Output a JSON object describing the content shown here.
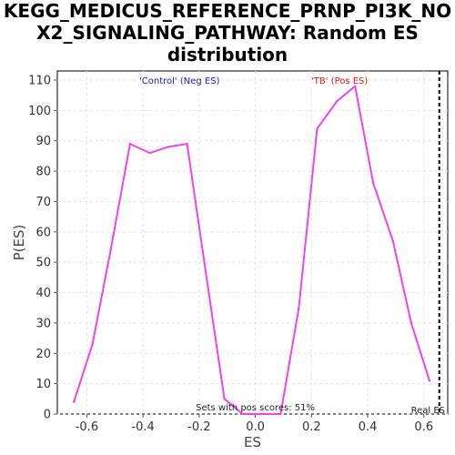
{
  "chart_data": {
    "type": "line",
    "title_lines": [
      "KEGG_MEDICUS_REFERENCE_PRNP_PI3K_NO",
      "X2_SIGNALING_PATHWAY: Random ES",
      "distribution"
    ],
    "xlabel": "ES",
    "ylabel": "P(ES)",
    "xlim": [
      -0.705,
      0.685
    ],
    "ylim": [
      0,
      113
    ],
    "x_ticks": [
      -0.6,
      -0.4,
      -0.2,
      0.0,
      0.2,
      0.4,
      0.6
    ],
    "x_tick_labels": [
      "-0.6",
      "-0.4",
      "-0.2",
      "0.0",
      "0.2",
      "0.4",
      "0.6"
    ],
    "y_ticks": [
      0,
      10,
      20,
      30,
      40,
      50,
      60,
      70,
      80,
      90,
      100,
      110
    ],
    "y_tick_labels": [
      "0",
      "10",
      "20",
      "30",
      "40",
      "50",
      "60",
      "70",
      "80",
      "90",
      "100",
      "110"
    ],
    "grid": true,
    "series": [
      {
        "color": "#ee44ee",
        "x": [
          -0.646,
          -0.58,
          -0.515,
          -0.446,
          -0.375,
          -0.31,
          -0.243,
          -0.177,
          -0.11,
          -0.045,
          0.02,
          0.09,
          0.155,
          0.22,
          0.29,
          0.355,
          0.42,
          0.49,
          0.555,
          0.62
        ],
        "y": [
          4,
          23,
          54,
          89,
          86,
          88,
          89,
          47,
          5,
          0,
          0,
          0,
          35,
          94,
          103,
          108,
          76,
          57,
          30,
          11
        ]
      }
    ],
    "real_es": 0.655,
    "real_es_label": "Real ES",
    "annotations": {
      "neg_label": "'Control' (Neg ES)",
      "pos_label": "'TB' (Pos ES)",
      "neg_color": "#2222bb",
      "pos_color": "#cc2222",
      "footer": "Sets with pos scores: 51%"
    }
  }
}
